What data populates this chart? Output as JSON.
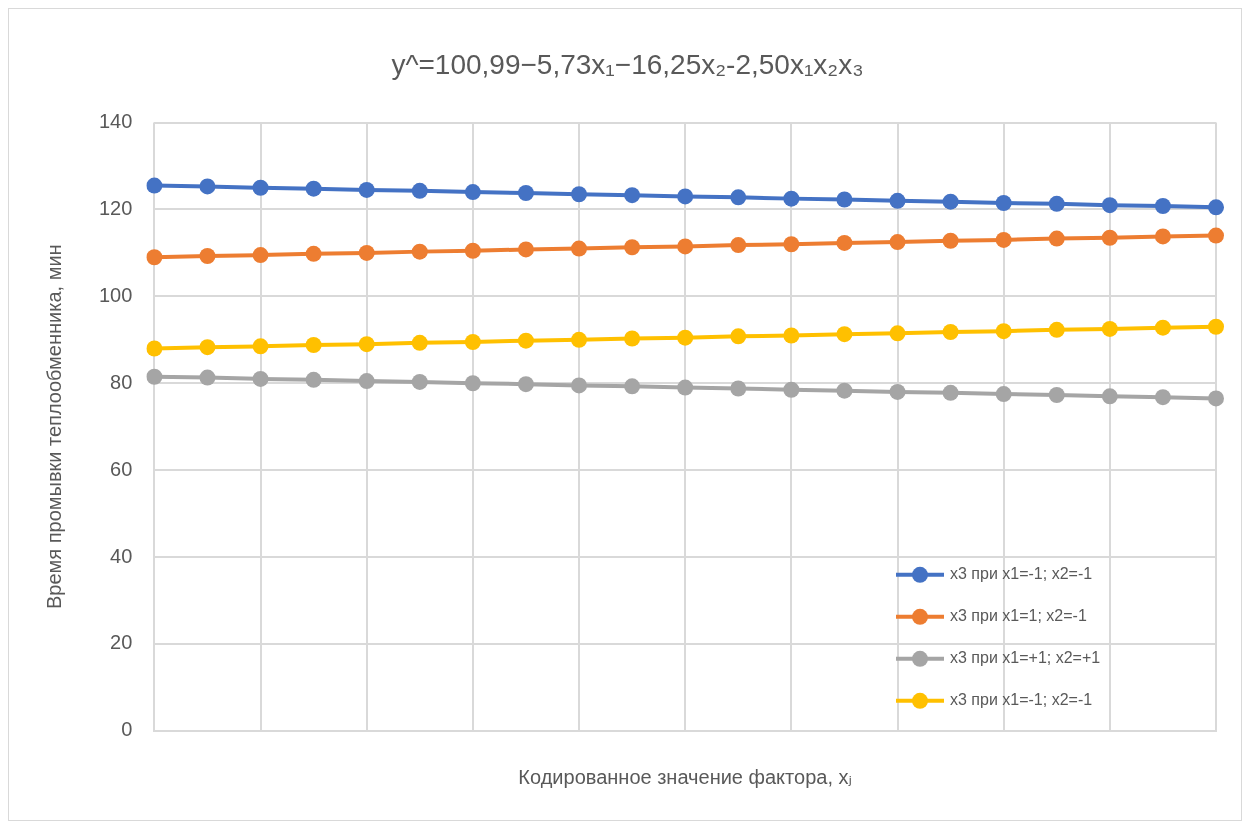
{
  "chart_data": {
    "type": "line",
    "title": "y^=100,99−5,73x₁−16,25x₂-2,50x₁x₂x₃",
    "xlabel": "Кодированное значение фактора, xⱼ",
    "ylabel": "Время промывки теплообменника, мин",
    "categories": [
      null,
      null,
      null,
      null,
      null,
      null,
      null,
      null,
      null,
      null,
      null,
      null,
      null,
      null,
      null,
      null,
      null,
      null,
      null,
      null,
      null
    ],
    "series": [
      {
        "name": "x3 при x1=-1; x2=-1",
        "color": "#4472c4",
        "values": [
          125.5,
          125.3,
          125,
          124.8,
          124.5,
          124.3,
          124,
          123.8,
          123.5,
          123.3,
          123,
          122.8,
          122.5,
          122.3,
          122,
          121.8,
          121.5,
          121.3,
          121,
          120.8,
          120.5
        ]
      },
      {
        "name": "x3 при x1=1; x2=-1",
        "color": "#ed7d31",
        "values": [
          109,
          109.3,
          109.5,
          109.8,
          110,
          110.3,
          110.5,
          110.8,
          111,
          111.3,
          111.5,
          111.8,
          112,
          112.3,
          112.5,
          112.8,
          113,
          113.3,
          113.5,
          113.8,
          114
        ]
      },
      {
        "name": "x3 при x1=+1; x2=+1",
        "color": "#a5a5a5",
        "values": [
          81.5,
          81.3,
          81,
          80.8,
          80.5,
          80.3,
          80,
          79.8,
          79.5,
          79.3,
          79,
          78.8,
          78.5,
          78.3,
          78,
          77.8,
          77.5,
          77.3,
          77,
          76.8,
          76.5
        ]
      },
      {
        "name": "x3 при x1=-1; x2=-1",
        "color": "#ffc000",
        "values": [
          88,
          88.3,
          88.5,
          88.8,
          89,
          89.3,
          89.5,
          89.8,
          90,
          90.3,
          90.5,
          90.8,
          91,
          91.3,
          91.5,
          91.8,
          92,
          92.3,
          92.5,
          92.8,
          93
        ]
      }
    ],
    "ylim": [
      0,
      140
    ],
    "yticks": [
      0,
      20,
      40,
      60,
      80,
      100,
      120,
      140
    ],
    "grid": true,
    "legend": "bottom right",
    "marker": "circle",
    "line_style": "solid"
  }
}
